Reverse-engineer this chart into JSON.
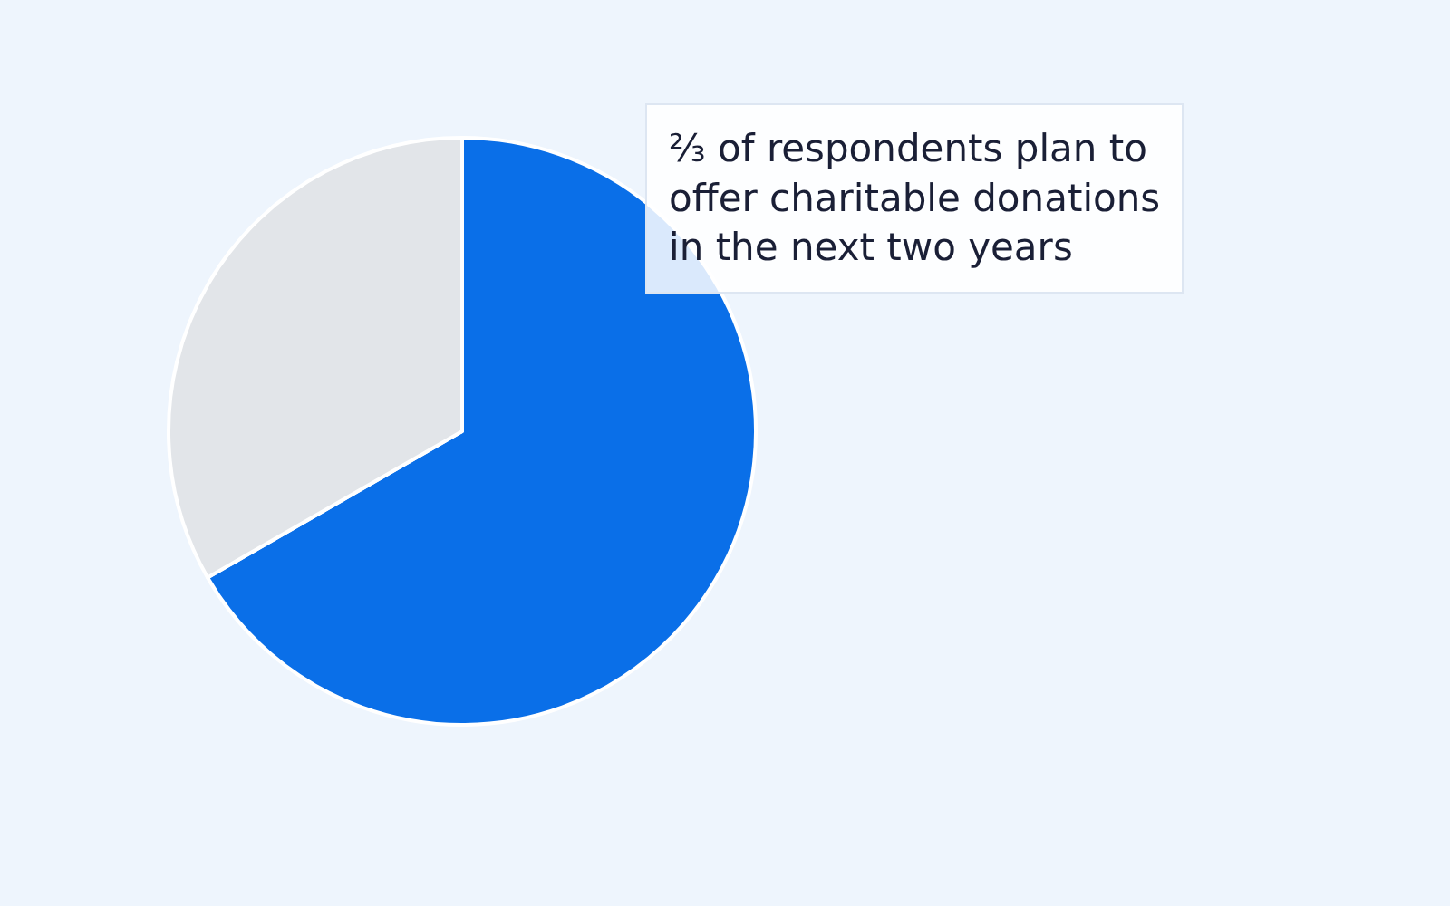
{
  "chart_data": {
    "type": "pie",
    "categories": [
      null,
      null
    ],
    "values": [
      66.7,
      33.3
    ],
    "colors": [
      "#0a6fe8",
      "#e2e5e9"
    ],
    "annotations": [
      "⅔ of respondents plan to offer charitable donations in the next two years"
    ],
    "legend": false
  }
}
